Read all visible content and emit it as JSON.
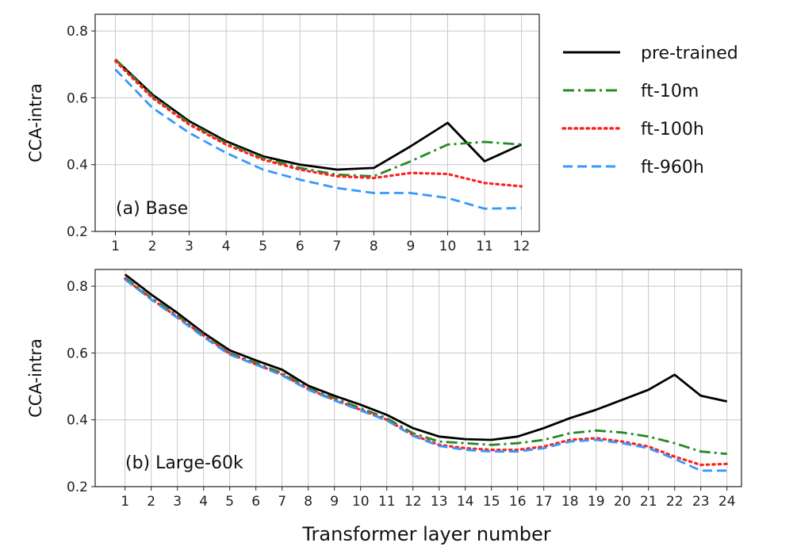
{
  "chart_data": [
    {
      "type": "line",
      "panel_label": "(a) Base",
      "ylabel": "CCA-intra",
      "xlabel": "",
      "x": [
        1,
        2,
        3,
        4,
        5,
        6,
        7,
        8,
        9,
        10,
        11,
        12
      ],
      "x_tick_labels": [
        "1",
        "2",
        "3",
        "4",
        "5",
        "6",
        "7",
        "8",
        "9",
        "10",
        "11",
        "12"
      ],
      "y_ticks": [
        0.2,
        0.4,
        0.6,
        0.8
      ],
      "y_tick_labels": [
        "0.2",
        "0.4",
        "0.6",
        "0.8"
      ],
      "ylim": [
        0.2,
        0.85
      ],
      "grid": true,
      "series": [
        {
          "name": "pre-trained",
          "color": "#000000",
          "dash": "solid",
          "values": [
            0.715,
            0.61,
            0.53,
            0.47,
            0.425,
            0.4,
            0.385,
            0.39,
            0.455,
            0.525,
            0.41,
            0.46
          ]
        },
        {
          "name": "ft-10m",
          "color": "#228B22",
          "dash": "dashdot",
          "values": [
            0.715,
            0.605,
            0.525,
            0.465,
            0.42,
            0.39,
            0.37,
            0.365,
            0.41,
            0.46,
            0.468,
            0.46
          ]
        },
        {
          "name": "ft-100h",
          "color": "#ff2020",
          "dash": "dotted",
          "values": [
            0.71,
            0.6,
            0.52,
            0.46,
            0.415,
            0.385,
            0.365,
            0.36,
            0.375,
            0.372,
            0.345,
            0.335
          ]
        },
        {
          "name": "ft-960h",
          "color": "#3399ff",
          "dash": "dashed",
          "values": [
            0.685,
            0.57,
            0.495,
            0.435,
            0.385,
            0.355,
            0.33,
            0.315,
            0.315,
            0.3,
            0.268,
            0.27
          ]
        }
      ]
    },
    {
      "type": "line",
      "panel_label": "(b) Large-60k",
      "ylabel": "CCA-intra",
      "xlabel": "Transformer layer number",
      "x": [
        1,
        2,
        3,
        4,
        5,
        6,
        7,
        8,
        9,
        10,
        11,
        12,
        13,
        14,
        15,
        16,
        17,
        18,
        19,
        20,
        21,
        22,
        23,
        24
      ],
      "x_tick_labels": [
        "1",
        "2",
        "3",
        "4",
        "5",
        "6",
        "7",
        "8",
        "9",
        "10",
        "11",
        "12",
        "13",
        "14",
        "15",
        "16",
        "17",
        "18",
        "19",
        "20",
        "21",
        "22",
        "23",
        "24"
      ],
      "y_ticks": [
        0.2,
        0.4,
        0.6,
        0.8
      ],
      "y_tick_labels": [
        "0.2",
        "0.4",
        "0.6",
        "0.8"
      ],
      "ylim": [
        0.2,
        0.85
      ],
      "grid": true,
      "series": [
        {
          "name": "pre-trained",
          "color": "#000000",
          "dash": "solid",
          "values": [
            0.835,
            0.775,
            0.72,
            0.66,
            0.608,
            0.578,
            0.55,
            0.502,
            0.472,
            0.445,
            0.415,
            0.375,
            0.35,
            0.342,
            0.34,
            0.35,
            0.375,
            0.405,
            0.43,
            0.46,
            0.49,
            0.535,
            0.472,
            0.455
          ]
        },
        {
          "name": "ft-10m",
          "color": "#228B22",
          "dash": "dashdot",
          "values": [
            0.825,
            0.765,
            0.712,
            0.655,
            0.6,
            0.57,
            0.54,
            0.495,
            0.465,
            0.435,
            0.405,
            0.36,
            0.335,
            0.33,
            0.325,
            0.33,
            0.34,
            0.36,
            0.368,
            0.362,
            0.35,
            0.33,
            0.305,
            0.298
          ]
        },
        {
          "name": "ft-100h",
          "color": "#ff2020",
          "dash": "dotted",
          "values": [
            0.822,
            0.762,
            0.708,
            0.652,
            0.598,
            0.566,
            0.536,
            0.492,
            0.46,
            0.43,
            0.4,
            0.355,
            0.325,
            0.315,
            0.31,
            0.31,
            0.32,
            0.34,
            0.345,
            0.335,
            0.32,
            0.29,
            0.265,
            0.268
          ]
        },
        {
          "name": "ft-960h",
          "color": "#3399ff",
          "dash": "dashed",
          "values": [
            0.82,
            0.76,
            0.705,
            0.648,
            0.595,
            0.565,
            0.533,
            0.49,
            0.458,
            0.428,
            0.398,
            0.352,
            0.322,
            0.31,
            0.305,
            0.305,
            0.315,
            0.335,
            0.34,
            0.33,
            0.315,
            0.283,
            0.248,
            0.248
          ]
        }
      ]
    }
  ],
  "legend": {
    "position": "top-right",
    "entries": [
      {
        "label": "pre-trained",
        "color": "#000000",
        "dash": "solid"
      },
      {
        "label": "ft-10m",
        "color": "#228B22",
        "dash": "dashdot"
      },
      {
        "label": "ft-100h",
        "color": "#ff2020",
        "dash": "dotted"
      },
      {
        "label": "ft-960h",
        "color": "#3399ff",
        "dash": "dashed"
      }
    ]
  }
}
